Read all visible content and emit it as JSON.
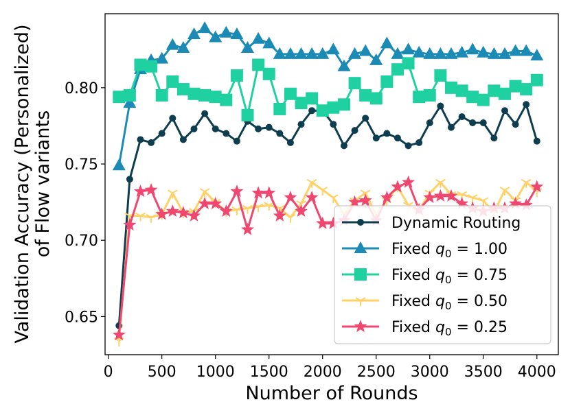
{
  "chart_data": {
    "type": "line",
    "title": "",
    "xlabel": "Number of Rounds",
    "ylabel": "Validation Accuracy (Personalized)",
    "ylabel2": "of Flow variants",
    "xlim": [
      -30,
      4200
    ],
    "ylim": [
      0.625,
      0.8485
    ],
    "xticks": [
      0,
      500,
      1000,
      1500,
      2000,
      2500,
      3000,
      3500,
      4000
    ],
    "xtick_labels": [
      "0",
      "500",
      "1000",
      "1500",
      "2000",
      "2500",
      "3000",
      "3500",
      "4000"
    ],
    "yticks": [
      0.65,
      0.7,
      0.75,
      0.8
    ],
    "ytick_labels": [
      "0.65",
      "0.70",
      "0.75",
      "0.80"
    ],
    "legend_position": "lower-right",
    "x": [
      100,
      200,
      300,
      400,
      500,
      600,
      700,
      800,
      900,
      1000,
      1100,
      1200,
      1300,
      1400,
      1500,
      1600,
      1700,
      1800,
      1900,
      2000,
      2100,
      2200,
      2300,
      2400,
      2500,
      2600,
      2700,
      2800,
      2900,
      3000,
      3100,
      3200,
      3300,
      3400,
      3500,
      3600,
      3700,
      3800,
      3900,
      4000
    ],
    "series": [
      {
        "name": "Dynamic Routing",
        "legend_prefix": "Dynamic Routing",
        "legend_sub": "",
        "legend_suffix": "",
        "color": "#0d3d4f",
        "marker": "circle",
        "values": [
          0.644,
          0.74,
          0.766,
          0.764,
          0.77,
          0.78,
          0.766,
          0.773,
          0.783,
          0.773,
          0.77,
          0.765,
          0.778,
          0.773,
          0.774,
          0.77,
          0.764,
          0.776,
          0.785,
          0.785,
          0.776,
          0.762,
          0.772,
          0.78,
          0.767,
          0.77,
          0.767,
          0.762,
          0.764,
          0.777,
          0.788,
          0.774,
          0.781,
          0.777,
          0.777,
          0.767,
          0.785,
          0.776,
          0.789,
          0.765
        ]
      },
      {
        "name": "Fixed q0 = 1.00",
        "legend_prefix": "Fixed q",
        "legend_sub": "0",
        "legend_suffix": " = 1.00",
        "color": "#1b8ab5",
        "marker": "triangle",
        "values": [
          0.749,
          0.79,
          0.812,
          0.818,
          0.819,
          0.828,
          0.826,
          0.835,
          0.839,
          0.833,
          0.836,
          0.835,
          0.826,
          0.832,
          0.829,
          0.822,
          0.822,
          0.822,
          0.822,
          0.822,
          0.825,
          0.814,
          0.822,
          0.824,
          0.818,
          0.829,
          0.822,
          0.825,
          0.823,
          0.822,
          0.822,
          0.822,
          0.823,
          0.825,
          0.823,
          0.822,
          0.822,
          0.824,
          0.824,
          0.821
        ]
      },
      {
        "name": "Fixed q0 = 0.75",
        "legend_prefix": "Fixed q",
        "legend_sub": "0",
        "legend_suffix": " = 0.75",
        "color": "#1fd1a0",
        "marker": "square",
        "values": [
          0.794,
          0.795,
          0.815,
          0.814,
          0.795,
          0.804,
          0.799,
          0.796,
          0.795,
          0.794,
          0.792,
          0.808,
          0.782,
          0.815,
          0.809,
          0.786,
          0.796,
          0.79,
          0.793,
          0.785,
          0.787,
          0.789,
          0.803,
          0.795,
          0.793,
          0.804,
          0.812,
          0.816,
          0.794,
          0.795,
          0.808,
          0.8,
          0.798,
          0.794,
          0.792,
          0.798,
          0.796,
          0.801,
          0.799,
          0.805
        ]
      },
      {
        "name": "Fixed q0 = 0.50",
        "legend_prefix": "Fixed q",
        "legend_sub": "0",
        "legend_suffix": " = 0.50",
        "color": "#ffd166",
        "marker": "tri_down",
        "values": [
          0.634,
          0.716,
          0.716,
          0.715,
          0.717,
          0.731,
          0.718,
          0.719,
          0.732,
          0.725,
          0.719,
          0.72,
          0.721,
          0.722,
          0.723,
          0.721,
          0.715,
          0.724,
          0.738,
          0.733,
          0.728,
          0.717,
          0.726,
          0.731,
          0.717,
          0.726,
          0.735,
          0.723,
          0.72,
          0.731,
          0.738,
          0.73,
          0.73,
          0.728,
          0.726,
          0.718,
          0.733,
          0.726,
          0.738,
          0.732
        ]
      },
      {
        "name": "Fixed q0 = 0.25",
        "legend_prefix": "Fixed q",
        "legend_sub": "0",
        "legend_suffix": " = 0.25",
        "color": "#ef476f",
        "marker": "star",
        "values": [
          0.638,
          0.71,
          0.732,
          0.733,
          0.717,
          0.719,
          0.718,
          0.716,
          0.724,
          0.724,
          0.719,
          0.732,
          0.707,
          0.731,
          0.731,
          0.716,
          0.728,
          0.719,
          0.728,
          0.711,
          0.711,
          0.713,
          0.725,
          0.726,
          0.713,
          0.728,
          0.735,
          0.738,
          0.72,
          0.728,
          0.729,
          0.729,
          0.724,
          0.721,
          0.719,
          0.721,
          0.721,
          0.724,
          0.723,
          0.735
        ]
      }
    ]
  }
}
